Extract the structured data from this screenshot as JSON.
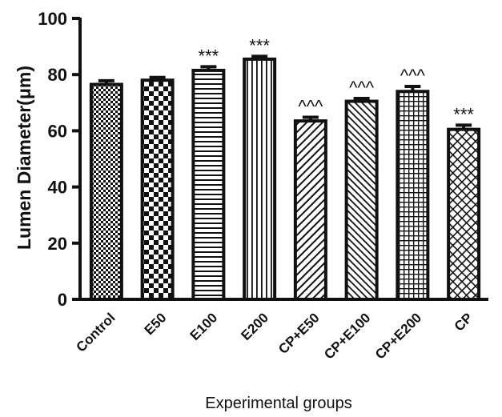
{
  "chart_data": {
    "type": "bar",
    "title": "",
    "xlabel": "Experimental groups",
    "ylabel": "Lumen Diameter(μm)",
    "ylim": [
      0,
      100
    ],
    "yticks": [
      0,
      20,
      40,
      60,
      80,
      100
    ],
    "grid": false,
    "bar_color": "#ffffff",
    "edge_color": "#111111",
    "categories": [
      "Control",
      "E50",
      "E100",
      "E200",
      "CP+E50",
      "CP+E100",
      "CP+E200",
      "CP"
    ],
    "values": [
      76.5,
      78.0,
      81.5,
      85.5,
      63.5,
      70.5,
      74.0,
      60.5
    ],
    "errors": [
      1.3,
      1.0,
      1.3,
      1.0,
      1.3,
      1.0,
      1.8,
      1.5
    ],
    "annotations": [
      "",
      "",
      "***",
      "***",
      "^^^",
      "^^^",
      "^^^",
      "***"
    ],
    "patterns": [
      "fine-checker",
      "checker",
      "horizontal-lines",
      "vertical-lines",
      "diagonal-lines",
      "reverse-diagonal-lines",
      "grid",
      "crosshatch"
    ]
  }
}
